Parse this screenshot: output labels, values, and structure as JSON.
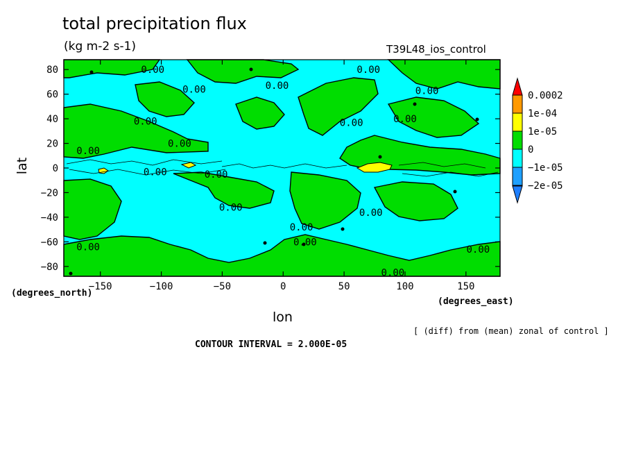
{
  "header": {
    "title": "total precipitation flux",
    "units": "(kg m-2 s-1)",
    "run_name": "T39L48_ios_control"
  },
  "footer": {
    "x_unit": "(degrees_east)",
    "y_unit": "(degrees_north)",
    "note": "[ (diff) from (mean) zonal of control ]",
    "contour_interval": "CONTOUR INTERVAL = 2.000E-05"
  },
  "colors": {
    "below_-2e-05": "#1e7fff",
    "-2e-05_to_-1e-05": "#1ea0ff",
    "-1e-05_to_0": "#00ffff",
    "0_to_1e-05": "#00dd00",
    "1e-05_to_1e-04": "#ffff00",
    "1e-04_to_0.0002": "#ff9900",
    "above_0.0002": "#ff0000"
  },
  "chart_data": {
    "type": "heatmap",
    "title": "total precipitation flux",
    "subtitle": "(kg m-2 s-1)",
    "xlabel": "lon",
    "ylabel": "lat",
    "xlim": [
      -180,
      178
    ],
    "ylim": [
      -88,
      88
    ],
    "x_ticks": [
      -150,
      -100,
      -50,
      0,
      50,
      100,
      150
    ],
    "y_ticks": [
      -80,
      -60,
      -40,
      -20,
      0,
      20,
      40,
      60,
      80
    ],
    "colorbar": {
      "labels": [
        "0.0002",
        "1e-04",
        "1e-05",
        "0",
        "−1e-05",
        "−2e-05"
      ],
      "bins": [
        {
          "color": "#ff0000",
          "from": 0.0002,
          "to": null
        },
        {
          "color": "#ff9900",
          "from": 0.0001,
          "to": 0.0002
        },
        {
          "color": "#ffff00",
          "from": 1e-05,
          "to": 0.0001
        },
        {
          "color": "#00dd00",
          "from": 0,
          "to": 1e-05
        },
        {
          "color": "#00ffff",
          "from": -1e-05,
          "to": 0
        },
        {
          "color": "#1ea0ff",
          "from": -2e-05,
          "to": -1e-05
        },
        {
          "color": "#1e7fff",
          "from": null,
          "to": -2e-05
        }
      ]
    },
    "contour_labels": [
      {
        "text": "0.00",
        "lon": -107,
        "lat": 80
      },
      {
        "text": "0.00",
        "lon": -73,
        "lat": 64
      },
      {
        "text": "0.00",
        "lon": -5,
        "lat": 67
      },
      {
        "text": "0.00",
        "lon": 70,
        "lat": 80
      },
      {
        "text": "0.00",
        "lon": 118,
        "lat": 63
      },
      {
        "text": "0.00",
        "lon": -113,
        "lat": 38
      },
      {
        "text": "0.00",
        "lon": -85,
        "lat": 20
      },
      {
        "text": "0.00",
        "lon": 56,
        "lat": 37
      },
      {
        "text": "0.00",
        "lon": 100,
        "lat": 40
      },
      {
        "text": "0.00",
        "lon": -160,
        "lat": 14
      },
      {
        "text": "0.00",
        "lon": -105,
        "lat": -3
      },
      {
        "text": "0.00",
        "lon": -55,
        "lat": -5
      },
      {
        "text": "0.00",
        "lon": -43,
        "lat": -32
      },
      {
        "text": "0.00",
        "lon": 15,
        "lat": -48
      },
      {
        "text": "0.00",
        "lon": 18,
        "lat": -60
      },
      {
        "text": "0.00",
        "lon": 72,
        "lat": -36
      },
      {
        "text": "0.00",
        "lon": 160,
        "lat": -66
      },
      {
        "text": "0.00",
        "lon": -160,
        "lat": -64
      },
      {
        "text": "0.00",
        "lon": 90,
        "lat": -85
      }
    ]
  }
}
